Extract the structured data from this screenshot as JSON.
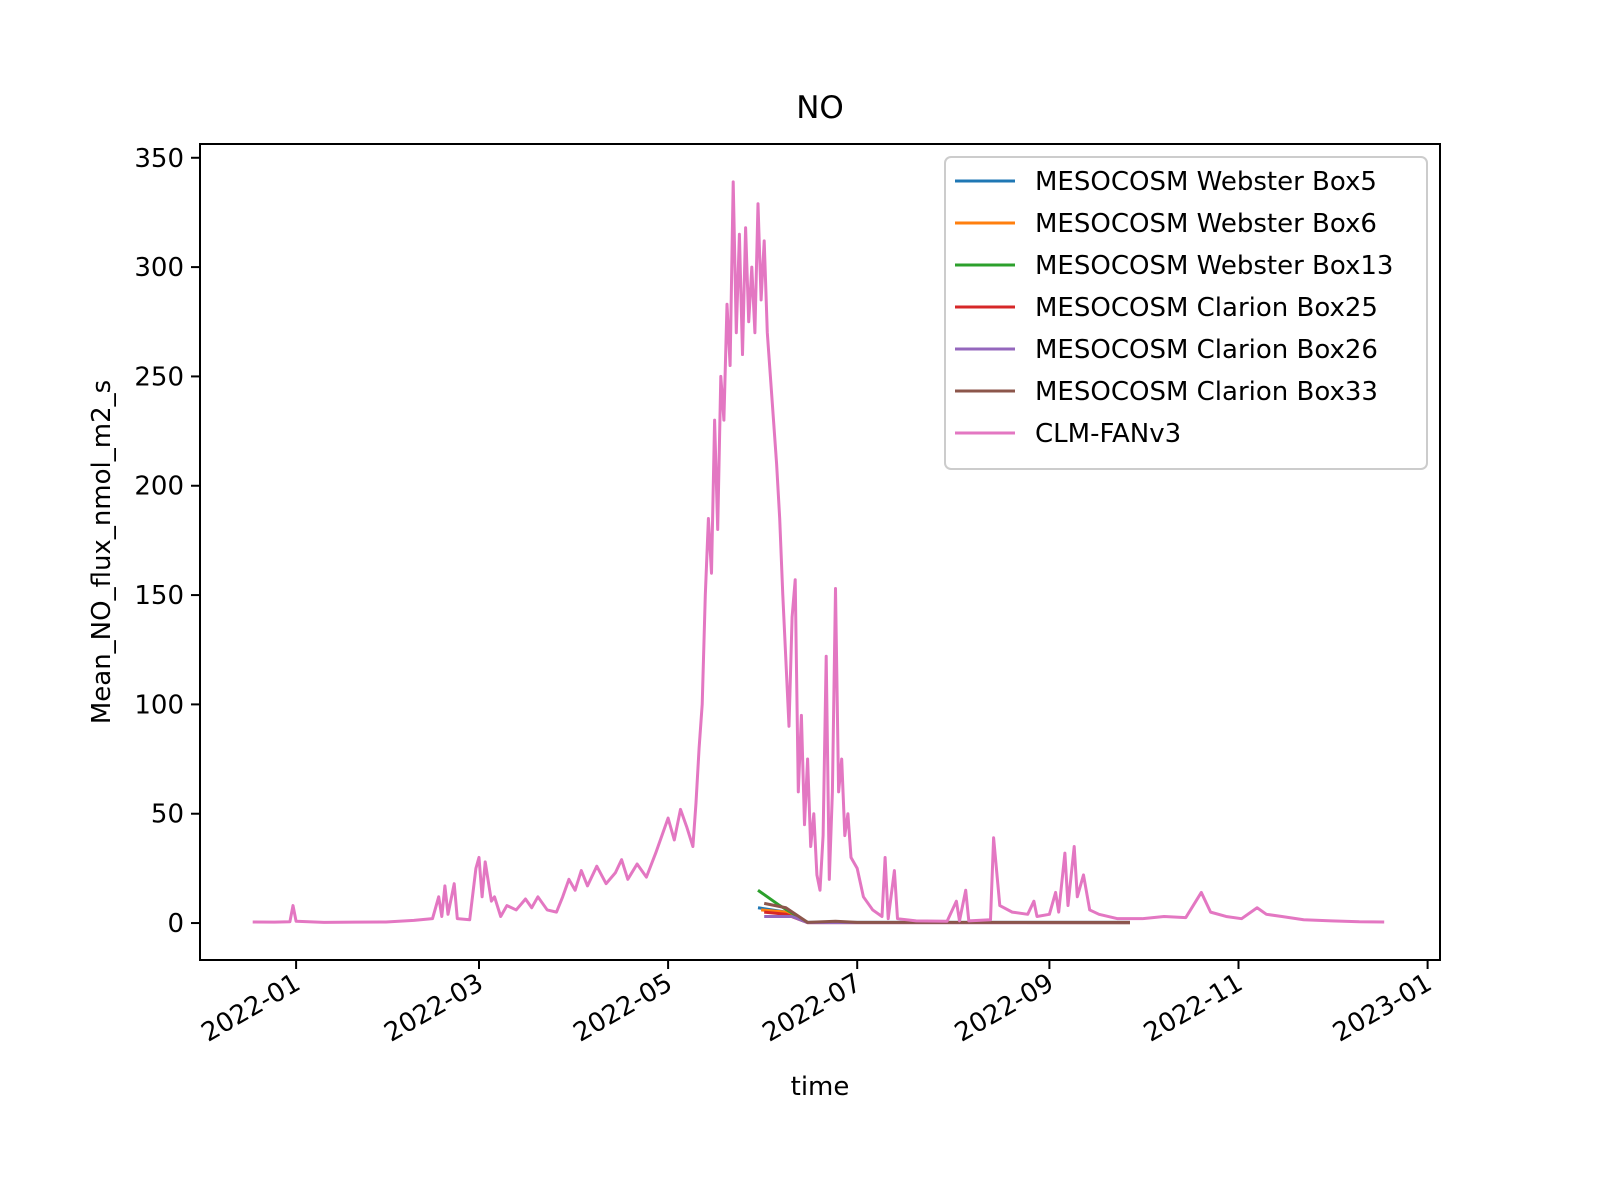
{
  "chart_data": {
    "type": "line",
    "title": "NO",
    "xlabel": "time",
    "ylabel": "Mean_NO_flux_nmol_m2_s",
    "xlim": [
      "2021-12-01",
      "2023-01-05"
    ],
    "xticks": [
      {
        "value": "2022-01-01",
        "label": "2022-01"
      },
      {
        "value": "2022-03-01",
        "label": "2022-03"
      },
      {
        "value": "2022-05-01",
        "label": "2022-05"
      },
      {
        "value": "2022-07-01",
        "label": "2022-07"
      },
      {
        "value": "2022-09-01",
        "label": "2022-09"
      },
      {
        "value": "2022-11-01",
        "label": "2022-11"
      },
      {
        "value": "2023-01-01",
        "label": "2023-01"
      }
    ],
    "ylim": [
      -16.9,
      356.3
    ],
    "yticks": [
      0,
      50,
      100,
      150,
      200,
      250,
      300,
      350
    ],
    "legend": "upper right",
    "series": [
      {
        "name": "MESOCOSM Webster Box5",
        "color": "#1f77b4",
        "x": [
          "2022-05-30",
          "2022-06-08",
          "2022-06-15",
          "2022-09-27"
        ],
        "values": [
          7,
          5,
          0.3,
          0.3
        ]
      },
      {
        "name": "MESOCOSM Webster Box6",
        "color": "#ff7f0e",
        "x": [
          "2022-05-31",
          "2022-06-08",
          "2022-06-15",
          "2022-09-27"
        ],
        "values": [
          6,
          5,
          0.3,
          0.2
        ]
      },
      {
        "name": "MESOCOSM Webster Box13",
        "color": "#2ca02c",
        "x": [
          "2022-05-30",
          "2022-06-06",
          "2022-06-15",
          "2022-09-27"
        ],
        "values": [
          15,
          8,
          0.3,
          0.2
        ]
      },
      {
        "name": "MESOCOSM Clarion Box25",
        "color": "#d62728",
        "x": [
          "2022-06-01",
          "2022-06-08",
          "2022-06-15",
          "2022-09-27"
        ],
        "values": [
          5,
          4,
          0.2,
          0.2
        ]
      },
      {
        "name": "MESOCOSM Clarion Box26",
        "color": "#9467bd",
        "x": [
          "2022-06-01",
          "2022-06-10",
          "2022-06-15",
          "2022-09-27"
        ],
        "values": [
          3,
          3,
          0.2,
          0.2
        ]
      },
      {
        "name": "MESOCOSM Clarion Box33",
        "color": "#8c564b",
        "x": [
          "2022-06-01",
          "2022-06-08",
          "2022-06-15",
          "2022-06-24",
          "2022-07-01",
          "2022-09-27"
        ],
        "values": [
          9,
          7,
          0.3,
          0.8,
          0.3,
          0.3
        ]
      },
      {
        "name": "CLM-FANv3",
        "color": "#e377c2",
        "x": [
          "2021-12-18",
          "2021-12-25",
          "2021-12-30",
          "2021-12-31",
          "2022-01-01",
          "2022-01-10",
          "2022-01-20",
          "2022-01-30",
          "2022-02-08",
          "2022-02-14",
          "2022-02-16",
          "2022-02-17",
          "2022-02-18",
          "2022-02-19",
          "2022-02-21",
          "2022-02-22",
          "2022-02-26",
          "2022-02-28",
          "2022-03-01",
          "2022-03-02",
          "2022-03-03",
          "2022-03-05",
          "2022-03-06",
          "2022-03-08",
          "2022-03-10",
          "2022-03-13",
          "2022-03-16",
          "2022-03-18",
          "2022-03-20",
          "2022-03-23",
          "2022-03-26",
          "2022-03-28",
          "2022-03-30",
          "2022-04-01",
          "2022-04-03",
          "2022-04-05",
          "2022-04-08",
          "2022-04-11",
          "2022-04-14",
          "2022-04-16",
          "2022-04-18",
          "2022-04-21",
          "2022-04-24",
          "2022-04-27",
          "2022-04-29",
          "2022-05-01",
          "2022-05-03",
          "2022-05-05",
          "2022-05-07",
          "2022-05-09",
          "2022-05-10",
          "2022-05-11",
          "2022-05-12",
          "2022-05-13",
          "2022-05-14",
          "2022-05-15",
          "2022-05-16",
          "2022-05-17",
          "2022-05-18",
          "2022-05-19",
          "2022-05-20",
          "2022-05-21",
          "2022-05-22",
          "2022-05-23",
          "2022-05-24",
          "2022-05-25",
          "2022-05-26",
          "2022-05-27",
          "2022-05-28",
          "2022-05-29",
          "2022-05-30",
          "2022-05-31",
          "2022-06-01",
          "2022-06-02",
          "2022-06-03",
          "2022-06-04",
          "2022-06-05",
          "2022-06-06",
          "2022-06-07",
          "2022-06-08",
          "2022-06-09",
          "2022-06-10",
          "2022-06-11",
          "2022-06-12",
          "2022-06-13",
          "2022-06-14",
          "2022-06-15",
          "2022-06-16",
          "2022-06-17",
          "2022-06-18",
          "2022-06-19",
          "2022-06-20",
          "2022-06-21",
          "2022-06-22",
          "2022-06-23",
          "2022-06-24",
          "2022-06-25",
          "2022-06-26",
          "2022-06-27",
          "2022-06-28",
          "2022-06-29",
          "2022-07-01",
          "2022-07-03",
          "2022-07-06",
          "2022-07-09",
          "2022-07-10",
          "2022-07-11",
          "2022-07-13",
          "2022-07-14",
          "2022-07-20",
          "2022-07-30",
          "2022-08-02",
          "2022-08-03",
          "2022-08-05",
          "2022-08-06",
          "2022-08-13",
          "2022-08-14",
          "2022-08-16",
          "2022-08-20",
          "2022-08-25",
          "2022-08-27",
          "2022-08-28",
          "2022-09-01",
          "2022-09-03",
          "2022-09-04",
          "2022-09-06",
          "2022-09-07",
          "2022-09-09",
          "2022-09-10",
          "2022-09-12",
          "2022-09-14",
          "2022-09-17",
          "2022-09-23",
          "2022-10-01",
          "2022-10-08",
          "2022-10-15",
          "2022-10-20",
          "2022-10-23",
          "2022-10-28",
          "2022-11-02",
          "2022-11-07",
          "2022-11-10",
          "2022-11-15",
          "2022-11-22",
          "2022-12-01",
          "2022-12-10",
          "2022-12-18"
        ],
        "values": [
          0.5,
          0.4,
          0.6,
          8,
          0.8,
          0.3,
          0.4,
          0.5,
          1.2,
          2,
          12,
          3,
          17,
          4,
          18,
          2,
          1.5,
          25,
          30,
          12,
          28,
          10,
          12,
          3,
          8,
          6,
          11,
          7,
          12,
          6,
          5,
          12,
          20,
          15,
          24,
          17,
          26,
          18,
          23,
          29,
          20,
          27,
          21,
          32,
          40,
          48,
          38,
          52,
          44,
          35,
          55,
          80,
          100,
          150,
          185,
          160,
          230,
          180,
          250,
          230,
          283,
          255,
          339,
          270,
          315,
          260,
          318,
          275,
          300,
          270,
          329,
          285,
          312,
          270,
          250,
          230,
          210,
          185,
          150,
          120,
          90,
          140,
          157,
          60,
          95,
          45,
          75,
          35,
          50,
          22,
          15,
          40,
          122,
          20,
          60,
          153,
          60,
          75,
          40,
          50,
          30,
          25,
          12,
          6,
          3,
          30,
          2,
          24,
          2,
          1,
          0.8,
          10,
          1,
          15,
          1,
          1.5,
          39,
          8,
          5,
          4,
          10,
          3,
          4,
          14,
          5,
          32,
          8,
          35,
          12,
          22,
          6,
          4,
          2,
          2,
          3,
          2.5,
          14,
          5,
          3,
          2,
          7,
          4,
          3,
          1.5,
          1,
          0.6,
          0.5
        ]
      }
    ]
  }
}
